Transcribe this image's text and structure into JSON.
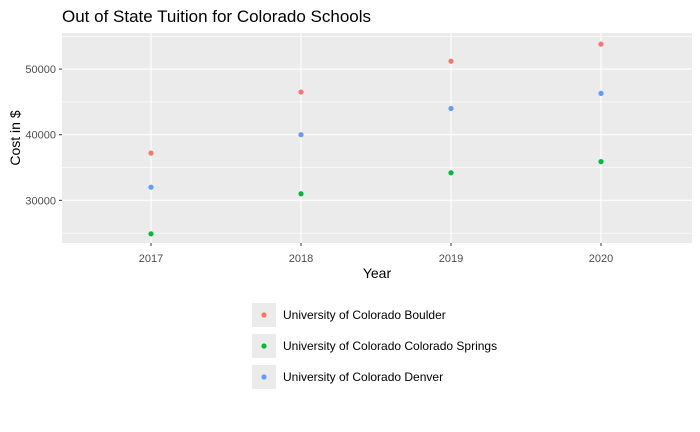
{
  "chart_data": {
    "type": "scatter",
    "title": "Out of State Tuition for Colorado Schools",
    "xlabel": "Year",
    "ylabel": "Cost in $",
    "x": [
      "2017",
      "2018",
      "2019",
      "2020"
    ],
    "yticks": [
      "30000",
      "40000",
      "50000"
    ],
    "ylim": [
      23500,
      55500
    ],
    "grid": true,
    "legend_position": "bottom",
    "series": [
      {
        "name": "University of Colorado Boulder",
        "color": "#F8766D",
        "values": [
          37200,
          46500,
          51200,
          53800
        ]
      },
      {
        "name": "University of Colorado Colorado Springs",
        "color": "#00BA38",
        "values": [
          24900,
          31000,
          34200,
          35900
        ]
      },
      {
        "name": "University of Colorado Denver",
        "color": "#619CFF",
        "values": [
          32000,
          40000,
          44000,
          46300
        ]
      }
    ]
  }
}
